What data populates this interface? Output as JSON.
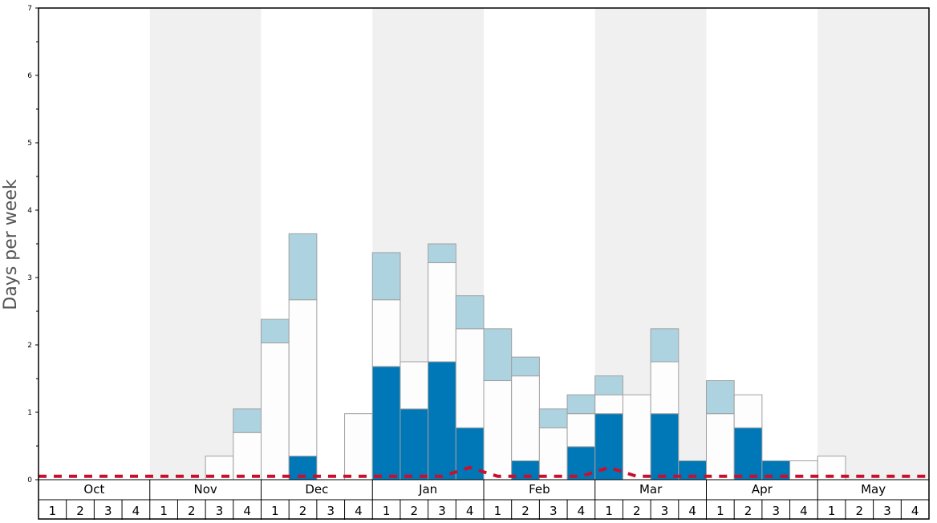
{
  "chart_data": {
    "type": "bar",
    "ylabel": "Days per week",
    "ylim": [
      0,
      7
    ],
    "y_ticks": [
      "0",
      "1",
      "2",
      "3",
      "4",
      "5",
      "6",
      "7"
    ],
    "months": [
      "Oct",
      "Nov",
      "Dec",
      "Jan",
      "Feb",
      "Mar",
      "Apr",
      "May"
    ],
    "weeks": [
      "1",
      "2",
      "3",
      "4"
    ],
    "grid": false,
    "stacking": "stacked per week: dark blue at the bottom, white above, light blue on top",
    "series": [
      {
        "color": "#0077b6",
        "values": [
          0,
          0,
          0,
          0,
          0,
          0,
          0,
          0,
          0,
          0.35,
          0,
          0,
          1.68,
          1.05,
          1.75,
          0.77,
          0,
          0.28,
          0,
          0.49,
          0.98,
          0,
          0.98,
          0.28,
          0,
          0.77,
          0.28,
          0,
          0,
          0,
          0,
          0
        ]
      },
      {
        "color": "#fdfdfd",
        "values": [
          0,
          0,
          0,
          0,
          0,
          0,
          0.35,
          0.7,
          2.03,
          2.32,
          0,
          0.98,
          0.99,
          0.7,
          1.47,
          1.47,
          1.47,
          1.26,
          0.77,
          0.49,
          0.28,
          1.26,
          0.77,
          0,
          0.98,
          0.49,
          0,
          0.28,
          0.35,
          0,
          0,
          0
        ]
      },
      {
        "color": "#aed3e0",
        "values": [
          0,
          0,
          0,
          0,
          0,
          0,
          0,
          0.35,
          0.35,
          0.98,
          0,
          0,
          0.7,
          0,
          0.28,
          0.49,
          0.77,
          0.28,
          0.28,
          0.28,
          0.28,
          0,
          0.49,
          0,
          0.49,
          0,
          0,
          0,
          0,
          0,
          0,
          0
        ]
      },
      {
        "color": "#c8102e",
        "line_style": "dashed",
        "values": [
          0.05,
          0.05,
          0.05,
          0.05,
          0.05,
          0.05,
          0.05,
          0.05,
          0.05,
          0.05,
          0.05,
          0.05,
          0.05,
          0.05,
          0.05,
          0.18,
          0.05,
          0.05,
          0.05,
          0.05,
          0.18,
          0.05,
          0.05,
          0.05,
          0.05,
          0.05,
          0.05,
          0.05,
          0.05,
          0.05,
          0.05,
          0.05
        ]
      }
    ],
    "background_bands": [
      "#ffffff",
      "#f0f0f0"
    ]
  }
}
